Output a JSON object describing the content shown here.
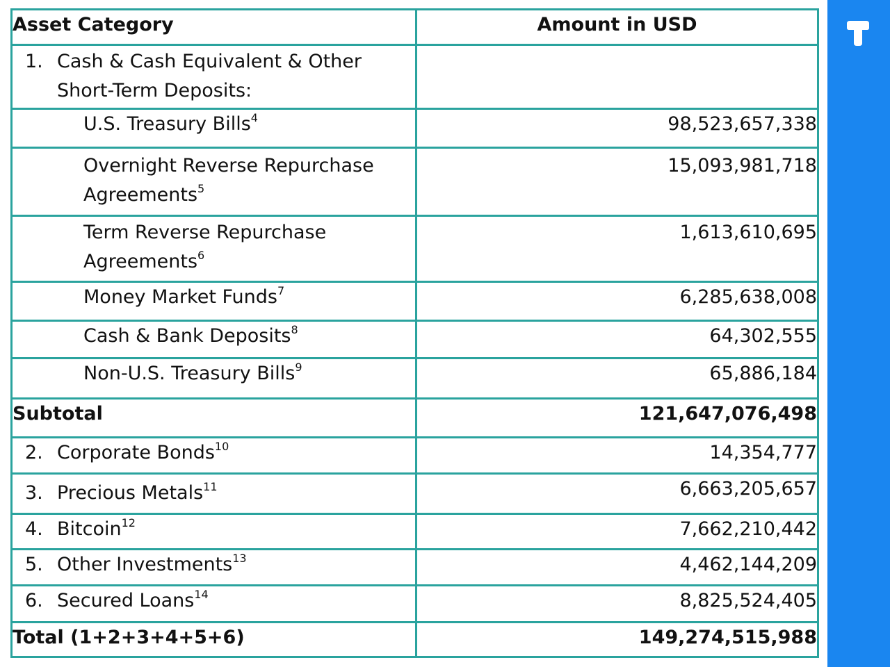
{
  "table": {
    "headers": [
      "Asset Category",
      "Amount in USD"
    ],
    "section1": {
      "number": "1.",
      "label": "Cash & Cash Equivalent & Other Short-Term Deposits:"
    },
    "sub_items": [
      {
        "label": "U.S. Treasury Bills",
        "note": "4",
        "amount": "98,523,657,338"
      },
      {
        "label": "Overnight Reverse Repurchase Agreements",
        "note": "5",
        "amount": "15,093,981,718"
      },
      {
        "label": "Term Reverse Repurchase Agreements",
        "note": "6",
        "amount": "1,613,610,695"
      },
      {
        "label": "Money Market Funds",
        "note": "7",
        "amount": "6,285,638,008"
      },
      {
        "label": "Cash & Bank Deposits",
        "note": "8",
        "amount": "64,302,555"
      },
      {
        "label": "Non-U.S. Treasury Bills",
        "note": "9",
        "amount": "65,886,184"
      }
    ],
    "subtotal": {
      "label": "Subtotal",
      "amount": "121,647,076,498"
    },
    "items": [
      {
        "number": "2.",
        "label": "Corporate Bonds",
        "note": "10",
        "amount": "14,354,777"
      },
      {
        "number": "3.",
        "label": "Precious Metals",
        "note": "11",
        "amount": "6,663,205,657"
      },
      {
        "number": "4.",
        "label": "Bitcoin",
        "note": "12",
        "amount": "7,662,210,442"
      },
      {
        "number": "5.",
        "label": "Other Investments",
        "note": "13",
        "amount": "4,462,144,209"
      },
      {
        "number": "6.",
        "label": "Secured Loans",
        "note": "14",
        "amount": "8,825,524,405"
      }
    ],
    "total": {
      "label": "Total (1+2+3+4+5+6)",
      "amount": "149,274,515,988"
    }
  },
  "sidebar": {
    "logo_icon": "tether-logo-icon",
    "color": "#1a86f0"
  },
  "colors": {
    "border": "#2aa39e"
  }
}
